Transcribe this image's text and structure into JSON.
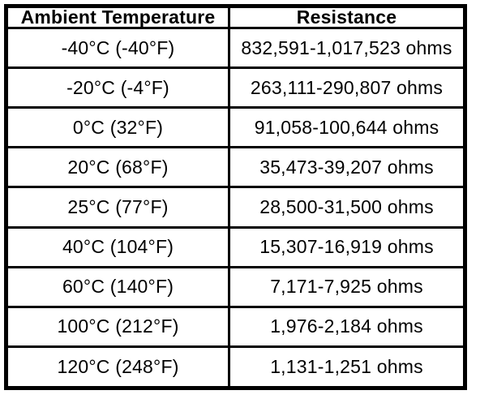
{
  "colors": {
    "background": "#ffffff",
    "border": "#000000",
    "text": "#000000"
  },
  "table": {
    "headers": [
      "Ambient Temperature",
      "Resistance"
    ],
    "rows": [
      {
        "temperature": "-40°C (-40°F)",
        "resistance": "832,591-1,017,523 ohms"
      },
      {
        "temperature": "-20°C (-4°F)",
        "resistance": "263,111-290,807 ohms"
      },
      {
        "temperature": "0°C (32°F)",
        "resistance": "91,058-100,644 ohms"
      },
      {
        "temperature": "20°C (68°F)",
        "resistance": "35,473-39,207 ohms"
      },
      {
        "temperature": "25°C (77°F)",
        "resistance": "28,500-31,500 ohms"
      },
      {
        "temperature": "40°C (104°F)",
        "resistance": "15,307-16,919 ohms"
      },
      {
        "temperature": "60°C (140°F)",
        "resistance": "7,171-7,925 ohms"
      },
      {
        "temperature": "100°C (212°F)",
        "resistance": "1,976-2,184 ohms"
      },
      {
        "temperature": "120°C (248°F)",
        "resistance": "1,131-1,251 ohms"
      }
    ]
  }
}
